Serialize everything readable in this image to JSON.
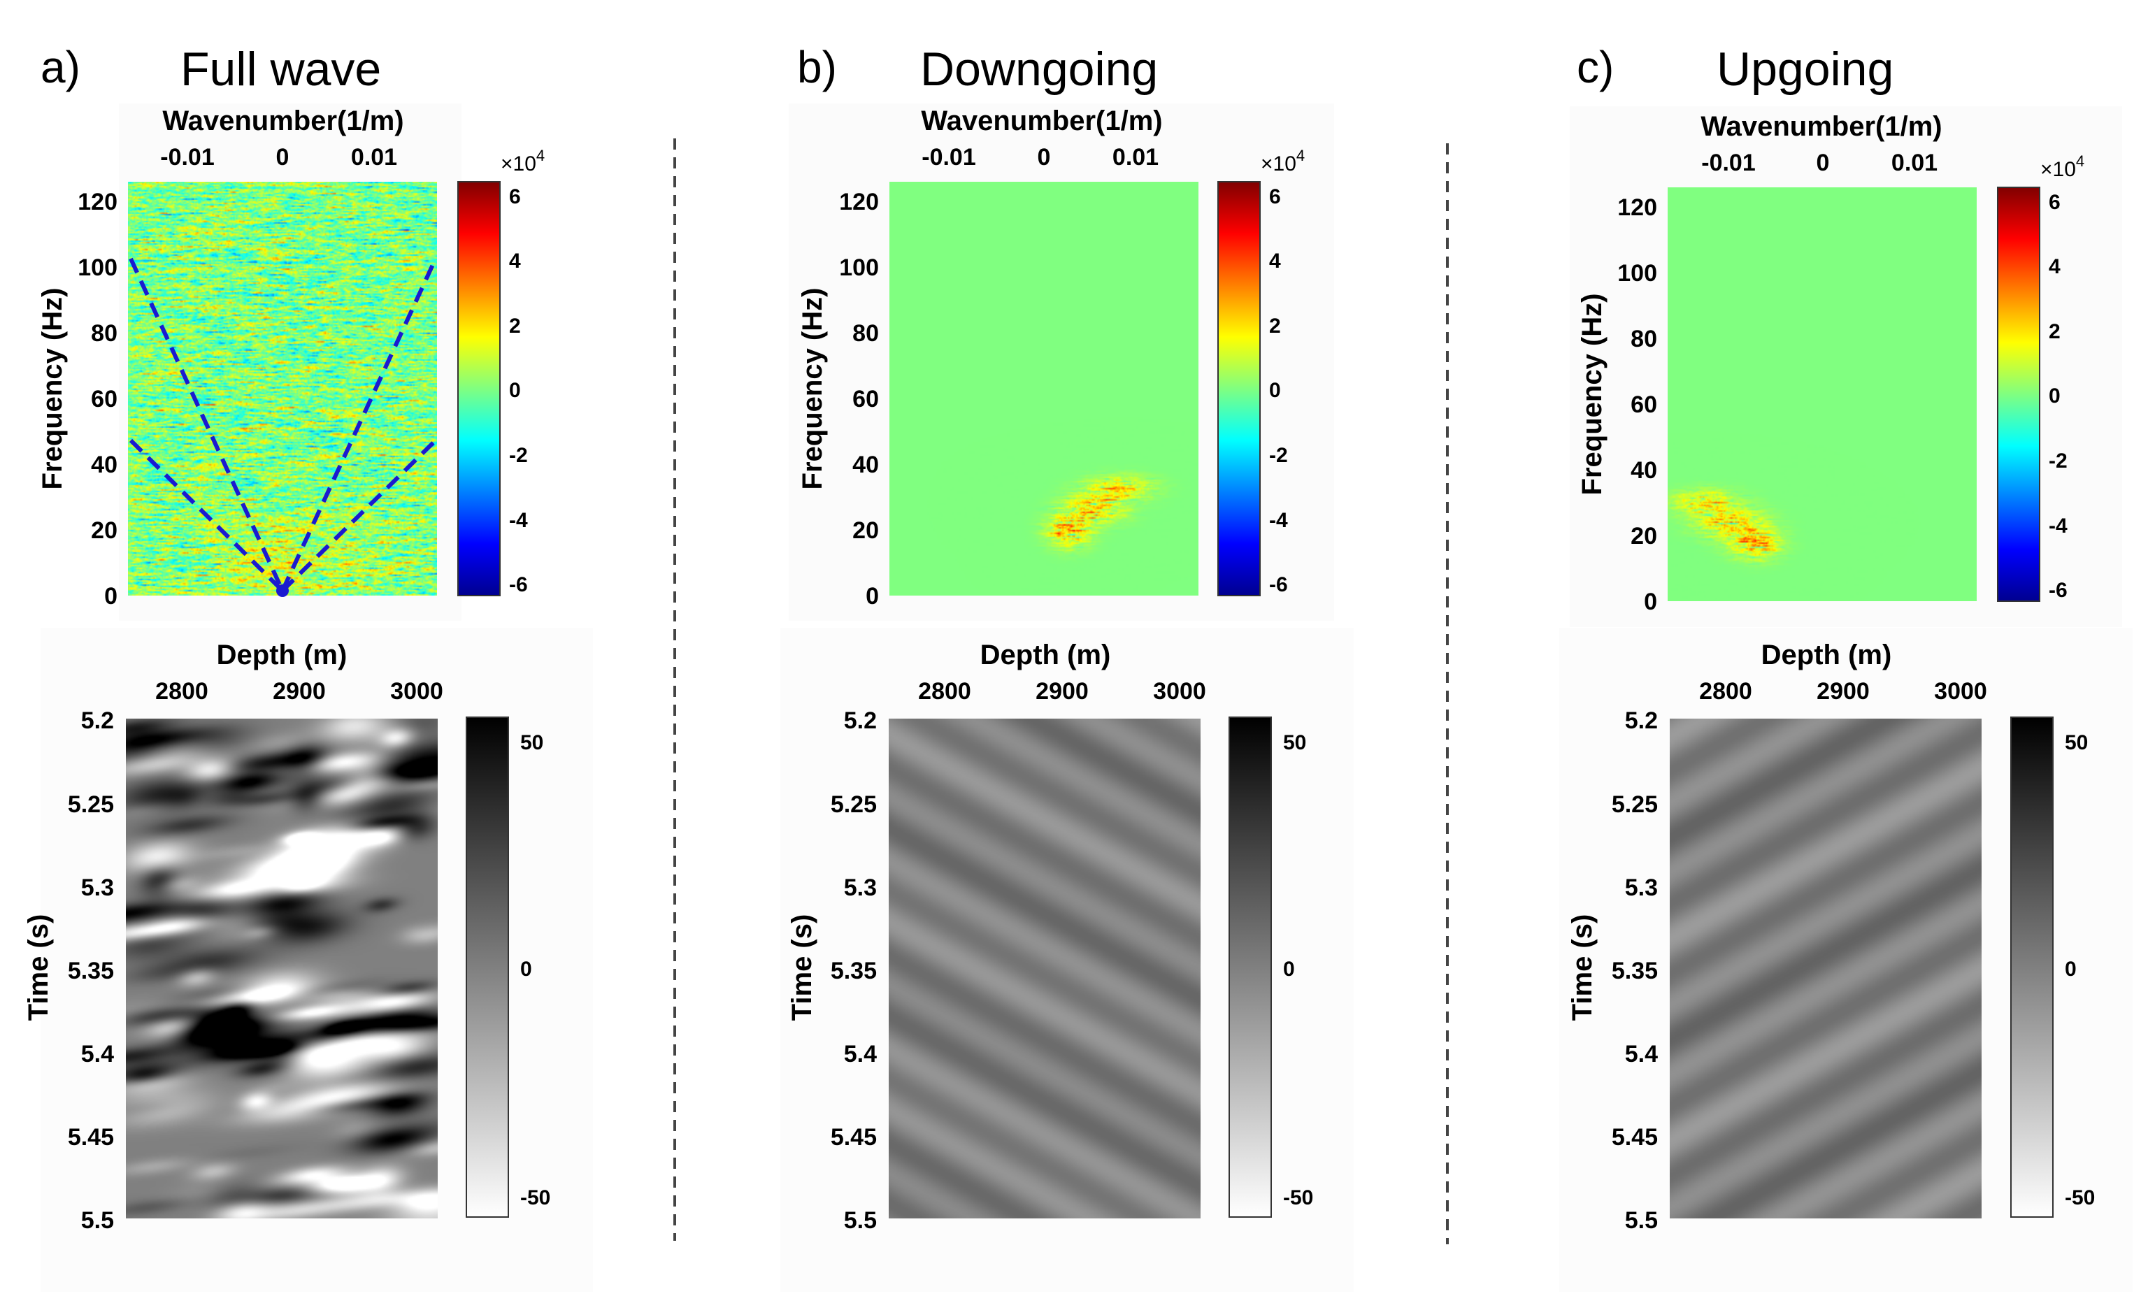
{
  "figure": {
    "panels": [
      {
        "letter": "a)",
        "title": "Full wave",
        "fk": {
          "xlabel": "Wavenumber(1/m)",
          "ylabel": "Frequency (Hz)",
          "xticks": [
            "-0.01",
            "0",
            "0.01"
          ],
          "yticks": [
            "0",
            "20",
            "40",
            "60",
            "80",
            "100",
            "120"
          ],
          "cbar_exp_base": "×10",
          "cbar_exp": "4",
          "cbar_ticks": [
            "6",
            "4",
            "2",
            "0",
            "-2",
            "-4",
            "-6"
          ],
          "field": "noise"
        },
        "tx": {
          "xlabel": "Depth (m)",
          "ylabel": "Time (s)",
          "xticks": [
            "2800",
            "2900",
            "3000"
          ],
          "yticks": [
            "5.2",
            "5.25",
            "5.3",
            "5.35",
            "5.4",
            "5.45",
            "5.5"
          ],
          "cbar_ticks": [
            "50",
            "0",
            "-50"
          ],
          "field": "full"
        }
      },
      {
        "letter": "b)",
        "title": "Downgoing",
        "fk": {
          "xlabel": "Wavenumber(1/m)",
          "ylabel": "Frequency (Hz)",
          "xticks": [
            "-0.01",
            "0",
            "0.01"
          ],
          "yticks": [
            "0",
            "20",
            "40",
            "60",
            "80",
            "100",
            "120"
          ],
          "cbar_exp_base": "×10",
          "cbar_exp": "4",
          "cbar_ticks": [
            "6",
            "4",
            "2",
            "0",
            "-2",
            "-4",
            "-6"
          ],
          "field": "down"
        },
        "tx": {
          "xlabel": "Depth (m)",
          "ylabel": "Time (s)",
          "xticks": [
            "2800",
            "2900",
            "3000"
          ],
          "yticks": [
            "5.2",
            "5.25",
            "5.3",
            "5.35",
            "5.4",
            "5.45",
            "5.5"
          ],
          "cbar_ticks": [
            "50",
            "0",
            "-50"
          ],
          "field": "down"
        }
      },
      {
        "letter": "c)",
        "title": "Upgoing",
        "fk": {
          "xlabel": "Wavenumber(1/m)",
          "ylabel": "Frequency (Hz)",
          "xticks": [
            "-0.01",
            "0",
            "0.01"
          ],
          "yticks": [
            "0",
            "20",
            "40",
            "60",
            "80",
            "100",
            "120"
          ],
          "cbar_exp_base": "×10",
          "cbar_exp": "4",
          "cbar_ticks": [
            "6",
            "4",
            "2",
            "0",
            "-2",
            "-4",
            "-6"
          ],
          "field": "up"
        },
        "tx": {
          "xlabel": "Depth (m)",
          "ylabel": "Time (s)",
          "xticks": [
            "2800",
            "2900",
            "3000"
          ],
          "yticks": [
            "5.2",
            "5.25",
            "5.3",
            "5.35",
            "5.4",
            "5.45",
            "5.5"
          ],
          "cbar_ticks": [
            "50",
            "0",
            "-50"
          ],
          "field": "up"
        }
      }
    ]
  },
  "chart_data": [
    {
      "type": "heatmap",
      "title": "Full wave",
      "xlabel": "Wavenumber(1/m)",
      "ylabel": "Frequency (Hz)",
      "xlim": [
        -0.0165,
        0.0165
      ],
      "ylim": [
        0,
        125
      ],
      "clim": [
        -65000,
        65000
      ],
      "xticks": [
        -0.01,
        0,
        0.01
      ],
      "yticks": [
        0,
        20,
        40,
        60,
        80,
        100,
        120
      ],
      "colorbar_ticks": [
        -60000,
        -40000,
        -20000,
        0,
        20000,
        40000,
        60000
      ],
      "annotations": [
        {
          "type": "dashed-line",
          "color": "#1a1ad0",
          "x": [
            -0.0165,
            0
          ],
          "y": [
            103,
            0
          ]
        },
        {
          "type": "dashed-line",
          "color": "#1a1ad0",
          "x": [
            0,
            0.0165
          ],
          "y": [
            0,
            103
          ]
        },
        {
          "type": "dashed-line",
          "color": "#1a1ad0",
          "x": [
            -0.0165,
            0
          ],
          "y": [
            47,
            0
          ]
        },
        {
          "type": "dashed-line",
          "color": "#1a1ad0",
          "x": [
            0,
            0.0165
          ],
          "y": [
            0,
            47
          ]
        }
      ]
    },
    {
      "type": "heatmap",
      "title": "Full wave",
      "xlabel": "Depth (m)",
      "ylabel": "Time (s)",
      "xlim": [
        2760,
        3020
      ],
      "ylim": [
        5.5,
        5.2
      ],
      "clim": [
        -55,
        55
      ],
      "xticks": [
        2800,
        2900,
        3000
      ],
      "yticks": [
        5.2,
        5.25,
        5.3,
        5.35,
        5.4,
        5.45,
        5.5
      ],
      "colorbar_ticks": [
        50,
        0,
        -50
      ]
    },
    {
      "type": "heatmap",
      "title": "Downgoing",
      "xlabel": "Wavenumber(1/m)",
      "ylabel": "Frequency (Hz)",
      "xlim": [
        -0.0165,
        0.0165
      ],
      "ylim": [
        0,
        125
      ],
      "clim": [
        -65000,
        65000
      ],
      "xticks": [
        -0.01,
        0,
        0.01
      ],
      "yticks": [
        0,
        20,
        40,
        60,
        80,
        100,
        120
      ],
      "colorbar_ticks": [
        -60000,
        -40000,
        -20000,
        0,
        20000,
        40000,
        60000
      ],
      "energy_region": {
        "k": [
          0,
          0.01
        ],
        "f": [
          12,
          35
        ]
      }
    },
    {
      "type": "heatmap",
      "title": "Downgoing",
      "xlabel": "Depth (m)",
      "ylabel": "Time (s)",
      "xlim": [
        2760,
        3020
      ],
      "ylim": [
        5.5,
        5.2
      ],
      "clim": [
        -55,
        55
      ],
      "xticks": [
        2800,
        2900,
        3000
      ],
      "yticks": [
        5.2,
        5.25,
        5.3,
        5.35,
        5.4,
        5.45,
        5.5
      ],
      "colorbar_ticks": [
        50,
        0,
        -50
      ]
    },
    {
      "type": "heatmap",
      "title": "Upgoing",
      "xlabel": "Wavenumber(1/m)",
      "ylabel": "Frequency (Hz)",
      "xlim": [
        -0.0165,
        0.0165
      ],
      "ylim": [
        0,
        125
      ],
      "clim": [
        -65000,
        65000
      ],
      "xticks": [
        -0.01,
        0,
        0.01
      ],
      "yticks": [
        0,
        20,
        40,
        60,
        80,
        100,
        120
      ],
      "colorbar_ticks": [
        -60000,
        -40000,
        -20000,
        0,
        20000,
        40000,
        60000
      ],
      "energy_region": {
        "k": [
          -0.0165,
          -0.004
        ],
        "f": [
          12,
          35
        ]
      }
    },
    {
      "type": "heatmap",
      "title": "Upgoing",
      "xlabel": "Depth (m)",
      "ylabel": "Time (s)",
      "xlim": [
        2760,
        3020
      ],
      "ylim": [
        5.5,
        5.2
      ],
      "clim": [
        -55,
        55
      ],
      "xticks": [
        2800,
        2900,
        3000
      ],
      "yticks": [
        5.2,
        5.25,
        5.3,
        5.35,
        5.4,
        5.45,
        5.5
      ],
      "colorbar_ticks": [
        50,
        0,
        -50
      ]
    }
  ]
}
